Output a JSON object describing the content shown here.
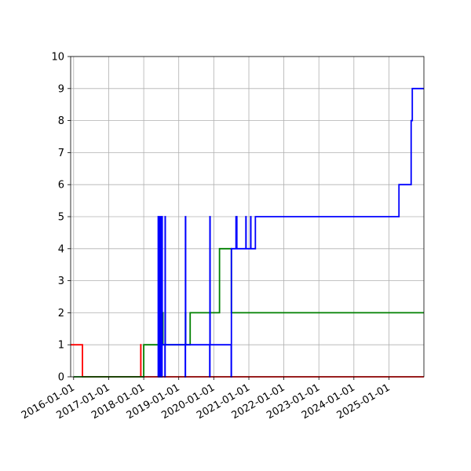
{
  "chart_data": {
    "type": "line",
    "title": "",
    "xlabel": "",
    "ylabel": "",
    "x_type": "date",
    "xlim": [
      "2015-12-01",
      "2025-12-31"
    ],
    "ylim": [
      0,
      10
    ],
    "grid": true,
    "legend": "none",
    "xticks": [
      "2016-01-01",
      "2017-01-01",
      "2018-01-01",
      "2019-01-01",
      "2020-01-01",
      "2021-01-01",
      "2022-01-01",
      "2023-01-01",
      "2024-01-01",
      "2025-01-01"
    ],
    "yticks": [
      0,
      1,
      2,
      3,
      4,
      5,
      6,
      7,
      8,
      9,
      10
    ],
    "step": "post",
    "series": [
      {
        "color": "#ff0000",
        "x": [
          "2015-12-01",
          "2016-04-01",
          "2016-04-02",
          "2017-12-01",
          "2017-12-02",
          "2025-12-31"
        ],
        "y": [
          1,
          1,
          0,
          1,
          0,
          0
        ]
      },
      {
        "color": "#008000",
        "x": [
          "2016-01-01",
          "2018-01-01",
          "2018-06-01",
          "2018-06-05",
          "2018-06-10",
          "2018-06-15",
          "2018-06-20",
          "2018-06-25",
          "2018-06-30",
          "2018-07-05",
          "2018-07-10",
          "2018-07-15",
          "2018-07-20",
          "2018-08-10",
          "2018-08-12",
          "2018-08-14",
          "2019-03-10",
          "2019-03-12",
          "2019-03-14",
          "2019-04-15",
          "2019-04-25",
          "2019-04-30",
          "2020-03-01",
          "2020-07-01",
          "2020-07-03",
          "2025-12-31"
        ],
        "y": [
          0,
          1,
          1,
          2,
          1,
          2,
          1,
          2,
          1,
          2,
          1,
          2,
          1,
          1,
          2,
          1,
          1,
          2,
          1,
          1,
          1,
          2,
          4,
          4,
          2,
          2
        ]
      },
      {
        "color": "#0000ff",
        "x": [
          "2018-05-28",
          "2018-06-01",
          "2018-06-03",
          "2018-06-05",
          "2018-06-07",
          "2018-06-09",
          "2018-06-11",
          "2018-06-13",
          "2018-06-15",
          "2018-06-17",
          "2018-06-19",
          "2018-06-21",
          "2018-06-23",
          "2018-06-25",
          "2018-06-27",
          "2018-06-29",
          "2018-07-01",
          "2018-07-03",
          "2018-07-05",
          "2018-07-07",
          "2018-07-09",
          "2018-07-11",
          "2018-07-13",
          "2018-07-20",
          "2018-08-10",
          "2018-08-12",
          "2018-08-14",
          "2019-03-10",
          "2019-03-12",
          "2019-03-14",
          "2019-11-20",
          "2019-11-22",
          "2019-11-24",
          "2020-07-01",
          "2020-07-03",
          "2020-08-20",
          "2020-08-22",
          "2020-08-24",
          "2020-08-27",
          "2020-08-29",
          "2020-08-31",
          "2020-12-01",
          "2020-12-03",
          "2020-12-05",
          "2021-01-20",
          "2021-01-22",
          "2021-01-24",
          "2021-03-10",
          "2025-04-15",
          "2025-08-20",
          "2025-08-24",
          "2025-09-01",
          "2025-12-31"
        ],
        "y": [
          0,
          5,
          0,
          5,
          0,
          5,
          0,
          5,
          0,
          5,
          0,
          5,
          0,
          5,
          0,
          5,
          0,
          5,
          0,
          5,
          0,
          5,
          1,
          1,
          0,
          5,
          1,
          0,
          5,
          1,
          0,
          5,
          1,
          0,
          4,
          5,
          4,
          4,
          5,
          4,
          4,
          5,
          4,
          4,
          5,
          4,
          4,
          5,
          6,
          8,
          8,
          9,
          9
        ]
      }
    ]
  }
}
